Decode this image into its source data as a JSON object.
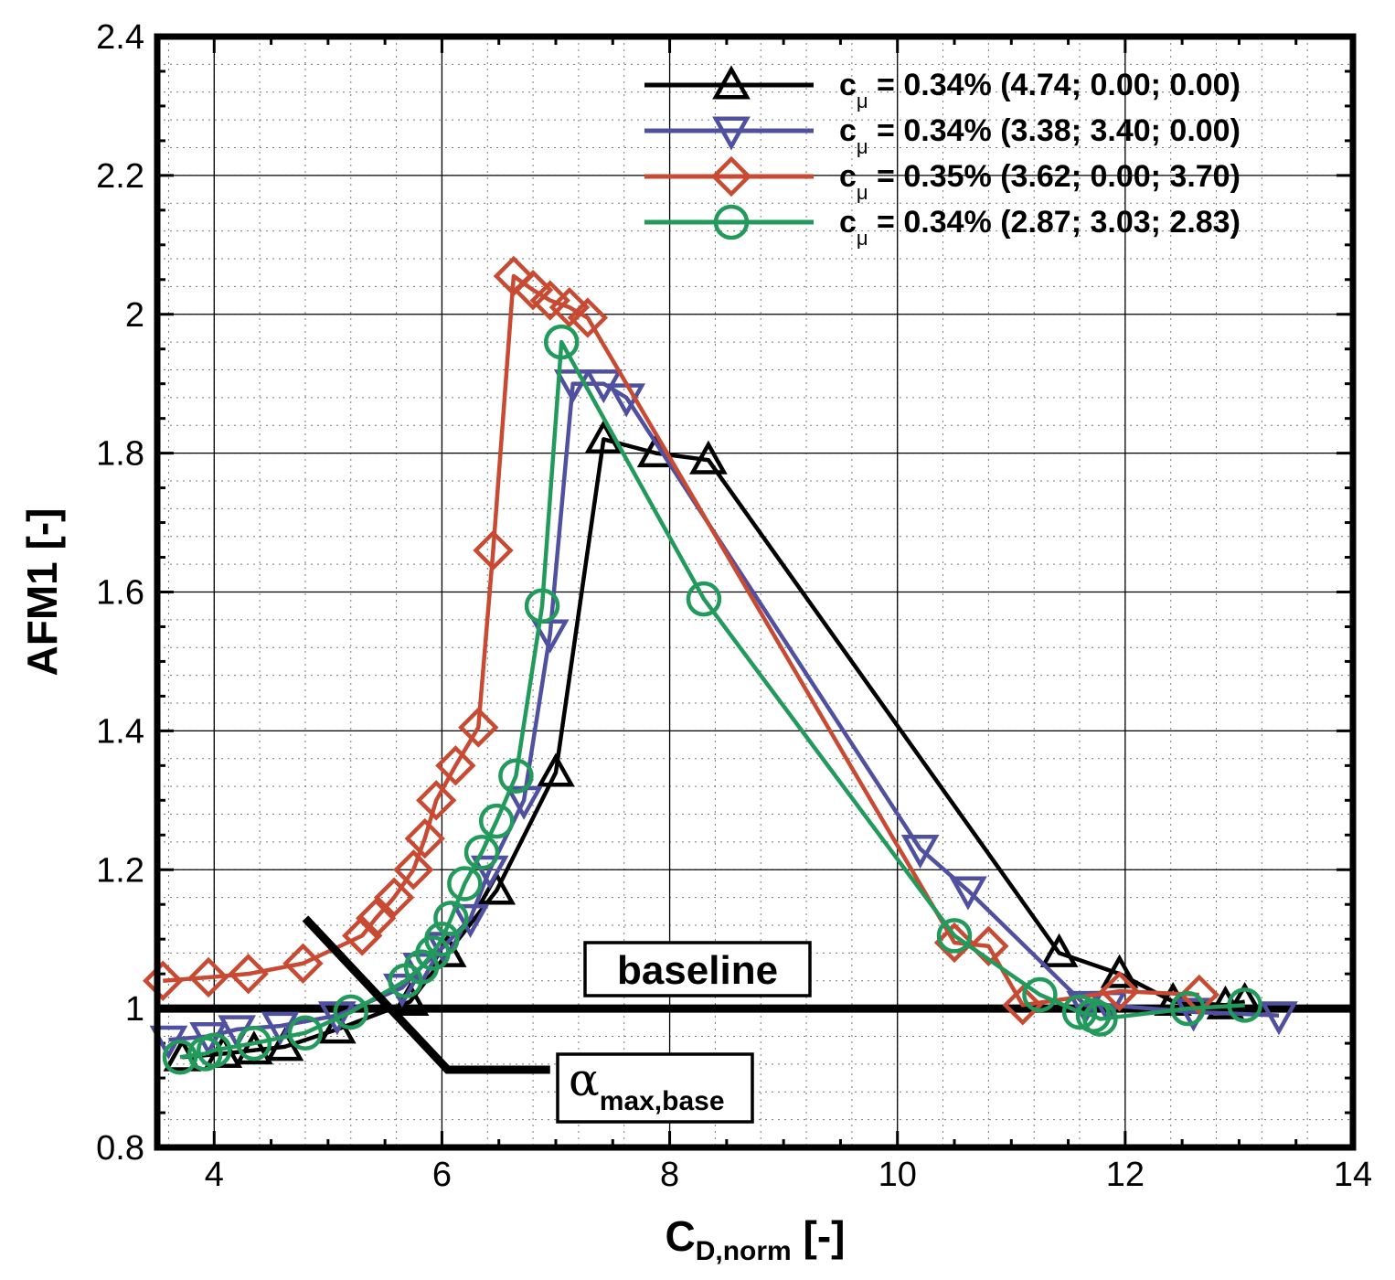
{
  "chart_data": {
    "type": "line",
    "xlabel": "C",
    "xlabel_sub": "D,norm",
    "xlabel_suffix": " [-]",
    "ylabel": "AFM1 [-]",
    "xlim": [
      3.5,
      14
    ],
    "ylim": [
      0.8,
      2.4
    ],
    "x_ticks": [
      4,
      6,
      8,
      10,
      12,
      14
    ],
    "y_ticks": [
      0.8,
      1,
      1.2,
      1.4,
      1.6,
      1.8,
      2,
      2.2,
      2.4
    ],
    "x_tick_labels": [
      "4",
      "6",
      "8",
      "10",
      "12",
      "14"
    ],
    "y_tick_labels": [
      "0.8",
      "1",
      "1.2",
      "1.4",
      "1.6",
      "1.8",
      "2",
      "2.2",
      "2.4"
    ],
    "x_minor_step": 0.4,
    "y_minor_step": 0.04,
    "grid": true,
    "legend_position": "top-right",
    "series": [
      {
        "name": "c_mu = 0.34% (4.74; 0.00; 0.00)",
        "label_main": "c",
        "label_sub": "μ",
        "label_rest": " = 0.34% (4.74; 0.00; 0.00)",
        "color": "#000000",
        "marker": "triangle-up",
        "x": [
          3.72,
          4.08,
          4.35,
          4.62,
          5.08,
          5.72,
          6.05,
          6.48,
          7.0,
          7.42,
          7.88,
          8.34,
          11.42,
          11.95,
          12.42,
          12.88,
          13.05
        ],
        "y": [
          0.93,
          0.935,
          0.94,
          0.945,
          0.97,
          1.01,
          1.08,
          1.17,
          1.34,
          1.82,
          1.8,
          1.79,
          1.08,
          1.05,
          1.01,
          1.005,
          1.01
        ]
      },
      {
        "name": "c_mu = 0.34% (3.38; 3.40; 0.00)",
        "label_main": "c",
        "label_sub": "μ",
        "label_rest": " = 0.34% (3.38; 3.40; 0.00)",
        "color": "#5050a0",
        "marker": "triangle-down",
        "x": [
          3.6,
          3.95,
          4.2,
          4.58,
          5.08,
          5.65,
          5.82,
          6.02,
          6.25,
          6.42,
          6.72,
          6.95,
          7.15,
          7.42,
          7.62,
          10.2,
          10.62,
          11.65,
          11.85,
          12.6,
          13.35
        ],
        "y": [
          0.955,
          0.96,
          0.97,
          0.975,
          0.99,
          1.03,
          1.06,
          1.09,
          1.13,
          1.2,
          1.3,
          1.54,
          1.9,
          1.9,
          1.88,
          1.23,
          1.17,
          1.005,
          1.005,
          0.995,
          0.99
        ]
      },
      {
        "name": "c_mu = 0.35% (3.62; 0.00; 3.70)",
        "label_main": "c",
        "label_sub": "μ",
        "label_rest": " = 0.35% (3.62; 0.00; 3.70)",
        "color": "#c84a32",
        "marker": "diamond",
        "x": [
          3.55,
          3.95,
          4.3,
          4.78,
          5.3,
          5.42,
          5.58,
          5.75,
          5.85,
          5.95,
          6.12,
          6.32,
          6.45,
          6.63,
          6.8,
          6.95,
          7.12,
          7.28,
          10.5,
          10.8,
          11.1,
          11.95,
          12.65
        ],
        "y": [
          1.04,
          1.045,
          1.05,
          1.065,
          1.105,
          1.13,
          1.16,
          1.2,
          1.245,
          1.3,
          1.35,
          1.405,
          1.66,
          2.055,
          2.035,
          2.02,
          2.01,
          1.995,
          1.095,
          1.09,
          1.005,
          1.025,
          1.02
        ]
      },
      {
        "name": "c_mu = 0.34% (2.87; 3.03; 2.83)",
        "label_main": "c",
        "label_sub": "μ",
        "label_rest": " = 0.34% (2.87; 3.03; 2.83)",
        "color": "#229a5c",
        "marker": "circle",
        "x": [
          3.7,
          3.92,
          4.0,
          4.35,
          4.8,
          5.2,
          5.68,
          5.82,
          5.92,
          6.0,
          6.08,
          6.2,
          6.35,
          6.48,
          6.65,
          6.88,
          7.05,
          8.3,
          10.5,
          11.25,
          11.6,
          11.72,
          11.78,
          12.55,
          13.05
        ],
        "y": [
          0.93,
          0.935,
          0.94,
          0.95,
          0.965,
          0.995,
          1.04,
          1.06,
          1.08,
          1.1,
          1.13,
          1.18,
          1.225,
          1.27,
          1.335,
          1.58,
          1.96,
          1.59,
          1.105,
          1.02,
          0.995,
          0.99,
          0.985,
          1.0,
          1.005
        ]
      }
    ],
    "annotations": {
      "baseline_label": "baseline",
      "baseline_y": 1.0,
      "alpha_symbol": "α",
      "alpha_sub": "max,base",
      "alpha_line_x": [
        4.8,
        6.05,
        6.95
      ],
      "alpha_line_y": [
        1.13,
        0.912,
        0.912
      ]
    }
  }
}
